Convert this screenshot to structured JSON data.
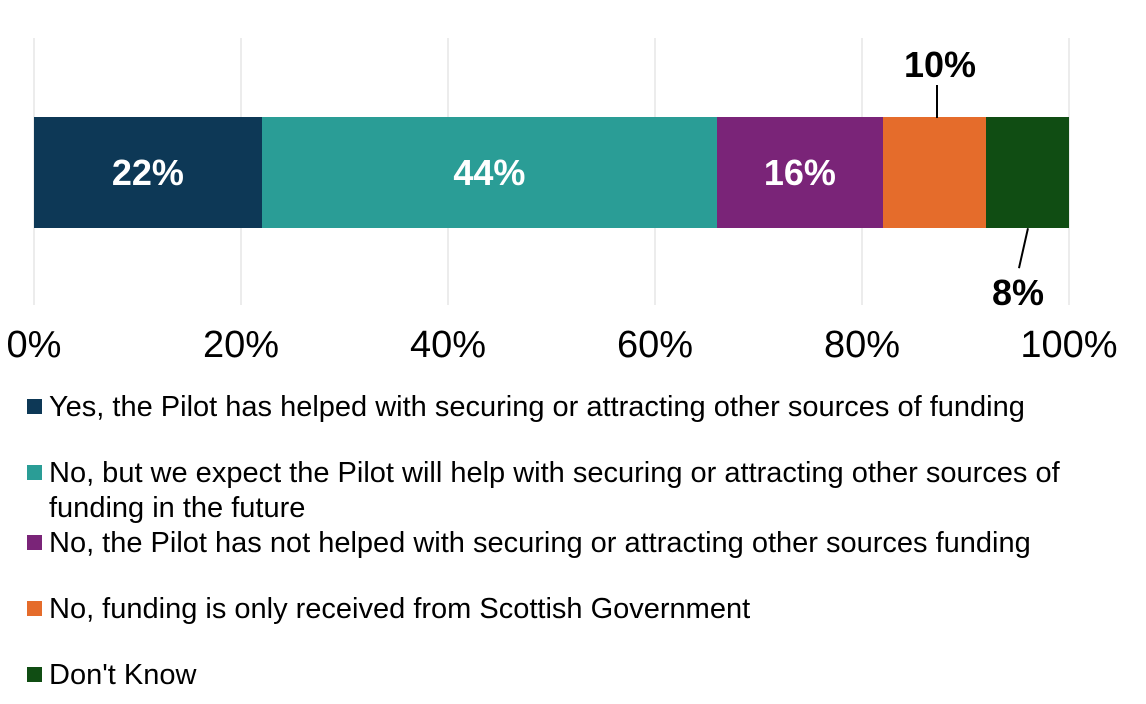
{
  "chart_data": {
    "type": "bar",
    "subtype": "horizontal-stacked-100-percent",
    "title": "",
    "xlabel": "",
    "ylabel": "",
    "x_axis": {
      "ticks": [
        "0%",
        "20%",
        "40%",
        "60%",
        "80%",
        "100%"
      ],
      "range": [
        0,
        100
      ],
      "gridlines": true,
      "gridline_color": "#D9D9D9"
    },
    "legend_position": "bottom-left",
    "series": [
      {
        "name": "Yes, the Pilot has helped with securing or attracting other sources of funding",
        "value": 22,
        "label": "22%",
        "label_position": "inside",
        "label_color": "#FFFFFF",
        "color": "#0D3856"
      },
      {
        "name": "No, but we expect the Pilot will help with securing or attracting other sources of funding in the future",
        "value": 44,
        "label": "44%",
        "label_position": "inside",
        "label_color": "#FFFFFF",
        "color": "#2A9D96"
      },
      {
        "name": "No, the Pilot has not helped with securing or attracting other sources funding",
        "value": 16,
        "label": "16%",
        "label_position": "inside",
        "label_color": "#FFFFFF",
        "color": "#7A2478"
      },
      {
        "name": "No, funding is only received from Scottish Government",
        "value": 10,
        "label": "10%",
        "label_position": "callout-above",
        "label_color": "#000000",
        "color": "#E56C2B"
      },
      {
        "name": "Don't Know",
        "value": 8,
        "label": "8%",
        "label_position": "callout-below",
        "label_color": "#000000",
        "color": "#104D13"
      }
    ]
  }
}
